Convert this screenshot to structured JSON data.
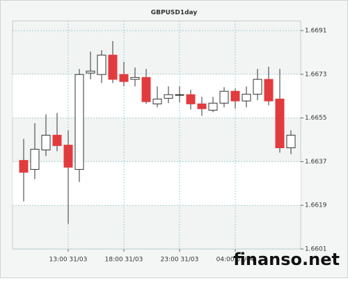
{
  "chart_data": {
    "type": "candlestick",
    "title": "GBPUSD1day",
    "categories": [
      null,
      null,
      null,
      null,
      "13:00 31/03",
      null,
      null,
      null,
      null,
      "18:00 31/03",
      null,
      null,
      null,
      null,
      "23:00 31/03",
      null,
      null,
      null,
      null,
      "04:00 01/04",
      null,
      null,
      null,
      null,
      null
    ],
    "open": [
      1.66375,
      1.66338,
      1.66418,
      1.66479,
      1.66438,
      1.66338,
      1.66735,
      1.66729,
      1.66809,
      1.66729,
      1.66709,
      1.66717,
      1.66608,
      1.66631,
      1.66646,
      1.66646,
      1.66608,
      1.66582,
      1.66611,
      1.6666,
      1.6662,
      1.66648,
      1.66709,
      1.66628,
      1.66427
    ],
    "high": [
      1.66464,
      1.66528,
      1.66565,
      1.66571,
      1.66499,
      1.66752,
      1.66824,
      1.66829,
      1.66867,
      1.66781,
      1.66758,
      1.66752,
      1.6668,
      1.6668,
      1.6668,
      1.66666,
      1.66637,
      1.66637,
      1.66677,
      1.66671,
      1.6668,
      1.66752,
      1.66761,
      1.66752,
      1.66499
    ],
    "low": [
      1.66206,
      1.66298,
      1.66393,
      1.66413,
      1.66114,
      1.66286,
      1.66709,
      1.66694,
      1.66694,
      1.6668,
      1.6668,
      1.66608,
      1.66594,
      1.66611,
      1.66614,
      1.66585,
      1.66559,
      1.66574,
      1.66594,
      1.66588,
      1.66594,
      1.66623,
      1.66602,
      1.66407,
      1.66401
    ],
    "close": [
      1.66326,
      1.66421,
      1.66479,
      1.66436,
      1.66347,
      1.66729,
      1.66743,
      1.66809,
      1.66709,
      1.667,
      1.66717,
      1.66617,
      1.66628,
      1.66646,
      1.66646,
      1.66608,
      1.66588,
      1.66611,
      1.6666,
      1.6662,
      1.66648,
      1.66709,
      1.6662,
      1.66427,
      1.66479
    ],
    "up_color": "#ffffff",
    "down_color": "#e23b3e",
    "ylim": [
      1.6601,
      1.6695
    ],
    "yticks": [
      1.6601,
      1.6619,
      1.6637,
      1.6655,
      1.6673,
      1.6691
    ],
    "grid": true,
    "watermark": "finanso.net"
  }
}
